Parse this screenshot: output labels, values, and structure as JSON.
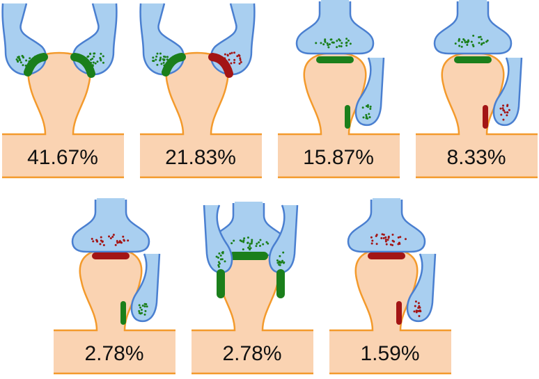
{
  "colors": {
    "spine_fill": "#FAD3B2",
    "spine_stroke": "#F39A2C",
    "axon_fill": "#A9CFF0",
    "axon_stroke": "#4A7FD0",
    "excitatory": "#1B7F1B",
    "inhibitory": "#A31515"
  },
  "panels": [
    {
      "label": "41.67%",
      "layout": "two-head",
      "synapses": [
        "excitatory",
        "excitatory"
      ]
    },
    {
      "label": "21.83%",
      "layout": "two-head",
      "synapses": [
        "excitatory",
        "inhibitory"
      ]
    },
    {
      "label": "15.87%",
      "layout": "top-neck",
      "synapses": [
        "excitatory",
        "excitatory"
      ]
    },
    {
      "label": "8.33%",
      "layout": "top-neck",
      "synapses": [
        "excitatory",
        "inhibitory"
      ]
    },
    {
      "label": "2.78%",
      "layout": "top-neck",
      "synapses": [
        "inhibitory",
        "excitatory"
      ]
    },
    {
      "label": "2.78%",
      "layout": "three-head",
      "synapses": [
        "excitatory",
        "excitatory",
        "excitatory"
      ]
    },
    {
      "label": "1.59%",
      "layout": "top-neck",
      "synapses": [
        "inhibitory",
        "inhibitory"
      ]
    }
  ]
}
